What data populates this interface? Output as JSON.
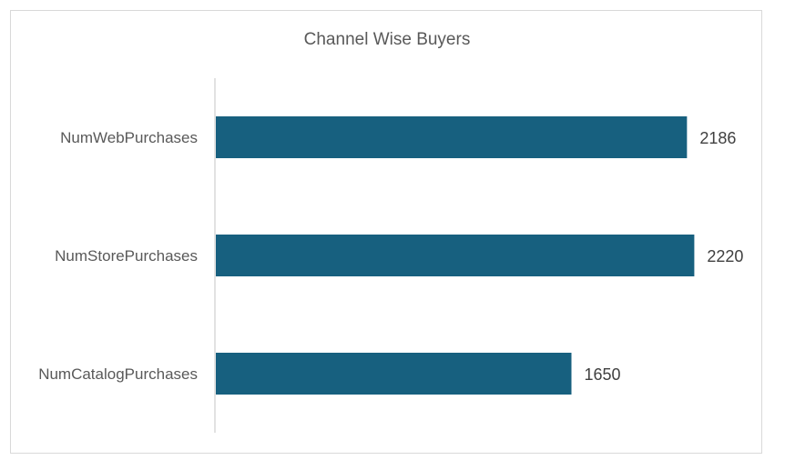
{
  "chart_data": {
    "type": "bar",
    "orientation": "horizontal",
    "title": "Channel Wise Buyers",
    "categories": [
      "NumWebPurchases",
      "NumStorePurchases",
      "NumCatalogPurchases"
    ],
    "values": [
      2186,
      2220,
      1650
    ],
    "xlabel": "",
    "ylabel": "",
    "xlim": [
      0,
      2400
    ],
    "grid": false,
    "legend": "none",
    "data_labels": true,
    "bar_color": "#17607f",
    "axis_color": "#d9d9d9",
    "label_color": "#595959",
    "value_label_color": "#404040"
  }
}
